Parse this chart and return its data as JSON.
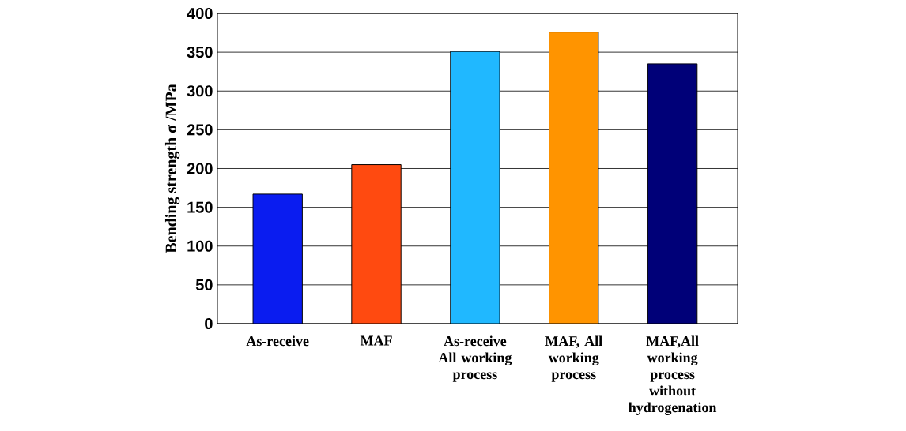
{
  "chart_data": {
    "type": "bar",
    "ylabel": "Bending strength σ /MPa",
    "categories": [
      "As-receive",
      "MAF",
      "As-receive  All working process",
      "MAF,  All working process",
      "MAF,All working process without hydrogenation"
    ],
    "values": [
      167,
      205,
      351,
      376,
      335
    ],
    "colors": [
      "#0a1cf0",
      "#ff4a10",
      "#20b8ff",
      "#ff9400",
      "#000078"
    ],
    "ylim": [
      0,
      400
    ],
    "yticks": [
      0,
      50,
      100,
      150,
      200,
      250,
      300,
      350,
      400
    ],
    "grid": "y"
  }
}
